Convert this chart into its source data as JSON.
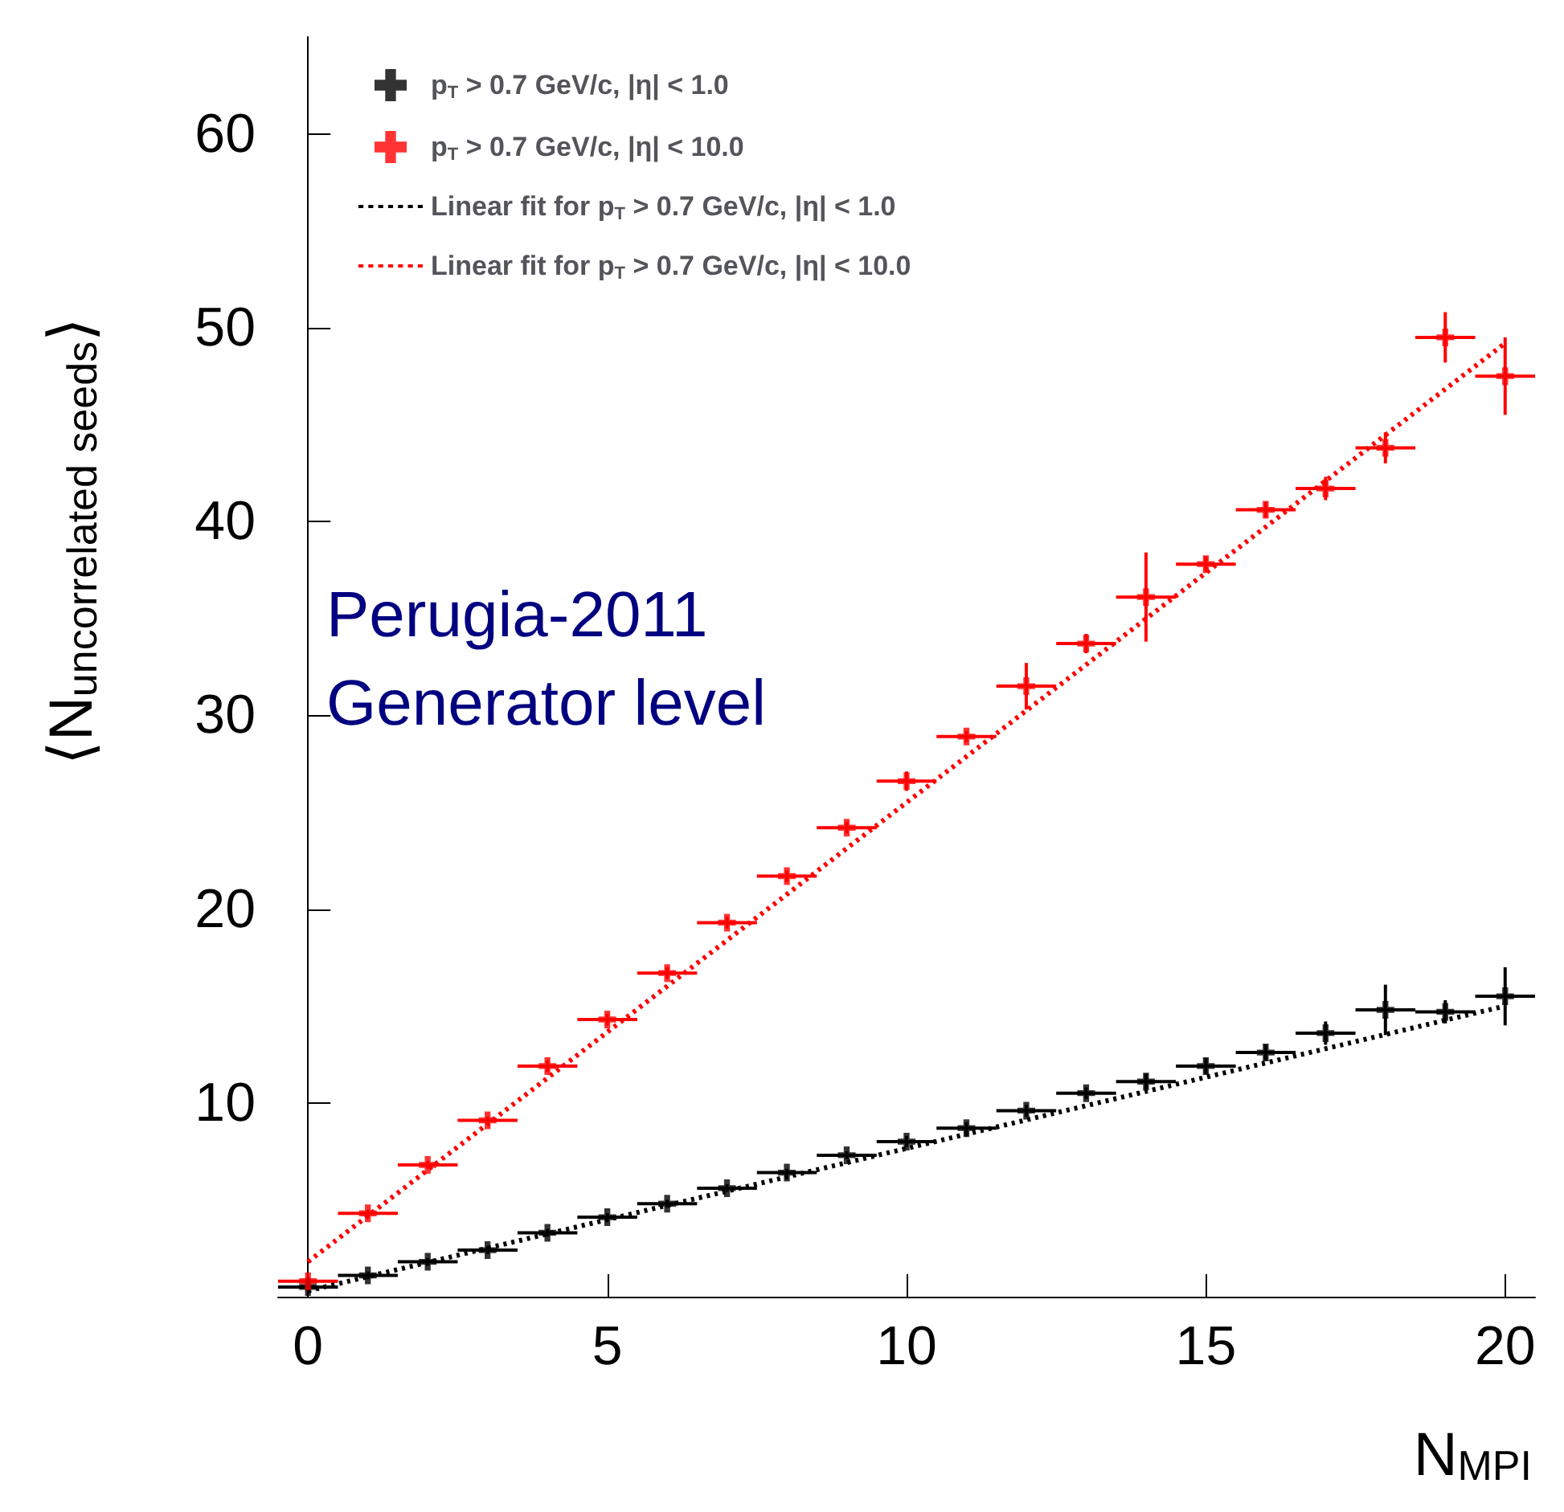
{
  "chart_data": {
    "type": "scatter",
    "xlabel": "N$_{MPI}$",
    "ylabel": "⟨N$_{uncorrelated seeds}$⟩",
    "annotations": [
      "Perugia-2011",
      "Generator level"
    ],
    "xlim": [
      -0.5,
      20.5
    ],
    "xticks": [
      0,
      5,
      10,
      15,
      20
    ],
    "ylim": [
      0,
      65
    ],
    "yticks": [
      10,
      20,
      30,
      40,
      50,
      60
    ],
    "grid": false,
    "legend": "top left",
    "series": [
      {
        "name": "p$_{T}$ > 0.7 GeV/c, |η| < 1.0",
        "color": "#000000",
        "x": [
          0,
          1,
          2,
          3,
          4,
          5,
          6,
          7,
          8,
          9,
          10,
          11,
          12,
          13,
          14,
          15,
          16,
          17,
          18,
          19,
          20
        ],
        "values": [
          0.5,
          1.1,
          1.8,
          2.4,
          3.3,
          4.1,
          4.8,
          5.6,
          6.4,
          7.3,
          8.0,
          8.7,
          9.6,
          10.5,
          11.1,
          11.9,
          12.6,
          13.6,
          14.8,
          14.7,
          15.5
        ],
        "errors": [
          0.2,
          0.2,
          0.2,
          0.2,
          0.2,
          0.2,
          0.2,
          0.2,
          0.2,
          0.2,
          0.3,
          0.3,
          0.3,
          0.3,
          0.4,
          0.4,
          0.4,
          0.6,
          1.3,
          0.6,
          1.5
        ],
        "xerrors": [
          0.5,
          0.5,
          0.5,
          0.5,
          0.5,
          0.5,
          0.5,
          0.5,
          0.5,
          0.5,
          0.5,
          0.5,
          0.5,
          0.5,
          0.5,
          0.5,
          0.5,
          0.5,
          0.5,
          0.5,
          0.5
        ]
      },
      {
        "name": "p$_{T}$ > 0.7 GeV/c, |η| < 10.0",
        "color": "#ff0000",
        "x": [
          0,
          1,
          2,
          3,
          4,
          5,
          6,
          7,
          8,
          9,
          10,
          11,
          12,
          13,
          14,
          15,
          16,
          17,
          18,
          19,
          20
        ],
        "values": [
          0.8,
          4.3,
          6.8,
          9.1,
          11.9,
          14.3,
          16.7,
          19.3,
          21.7,
          24.2,
          26.6,
          28.9,
          31.5,
          33.7,
          36.1,
          37.8,
          40.6,
          41.7,
          43.8,
          49.5,
          47.5
        ],
        "errors": [
          0.2,
          0.2,
          0.2,
          0.2,
          0.3,
          0.3,
          0.3,
          0.3,
          0.3,
          0.3,
          0.5,
          0.3,
          1.2,
          0.5,
          2.3,
          0.4,
          0.4,
          0.6,
          0.8,
          1.3,
          2.0
        ],
        "xerrors": [
          0.5,
          0.5,
          0.5,
          0.5,
          0.5,
          0.5,
          0.5,
          0.5,
          0.5,
          0.5,
          0.5,
          0.5,
          0.5,
          0.5,
          0.5,
          0.5,
          0.5,
          0.5,
          0.5,
          0.5,
          0.5
        ]
      },
      {
        "name": "Linear fit for p$_{T}$ > 0.7 GeV/c, |η| < 1.0",
        "color": "#000000",
        "type": "line",
        "line_style": "dotted",
        "x": [
          0,
          20
        ],
        "values": [
          0.3,
          15.0
        ]
      },
      {
        "name": "Linear fit for p$_{T}$ > 0.7 GeV/c, |η| < 10.0",
        "color": "#ff0000",
        "type": "line",
        "line_style": "dotted",
        "x": [
          0,
          20
        ],
        "values": [
          1.8,
          49.2
        ]
      }
    ]
  }
}
